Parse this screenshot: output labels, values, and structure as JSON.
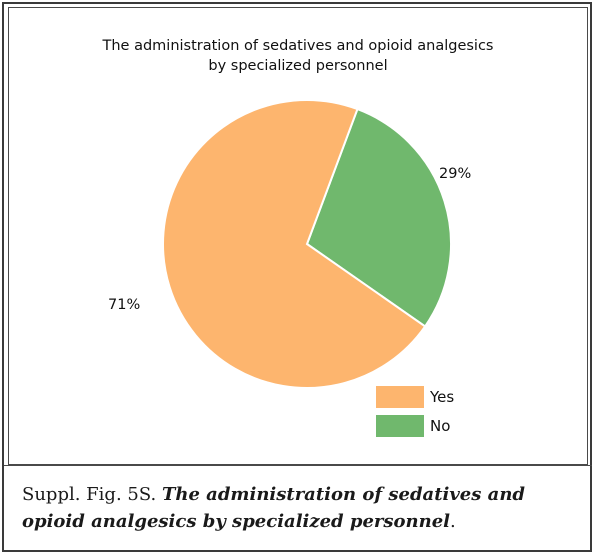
{
  "chart_data": {
    "type": "pie",
    "title_lines": [
      "The administration of sedatives and opioid analgesics",
      "by specialized personnel"
    ],
    "categories": [
      "Yes",
      "No"
    ],
    "values": [
      71,
      29
    ],
    "value_labels": [
      "71%",
      "29%"
    ],
    "colors": [
      "#FDB56E",
      "#70B86D"
    ],
    "legend_position": "bottom-right"
  },
  "caption": {
    "label": "Suppl. Fig. 5S.",
    "title": "The administration of  sedatives and opioid analgesics by specialized personnel",
    "end": "."
  }
}
